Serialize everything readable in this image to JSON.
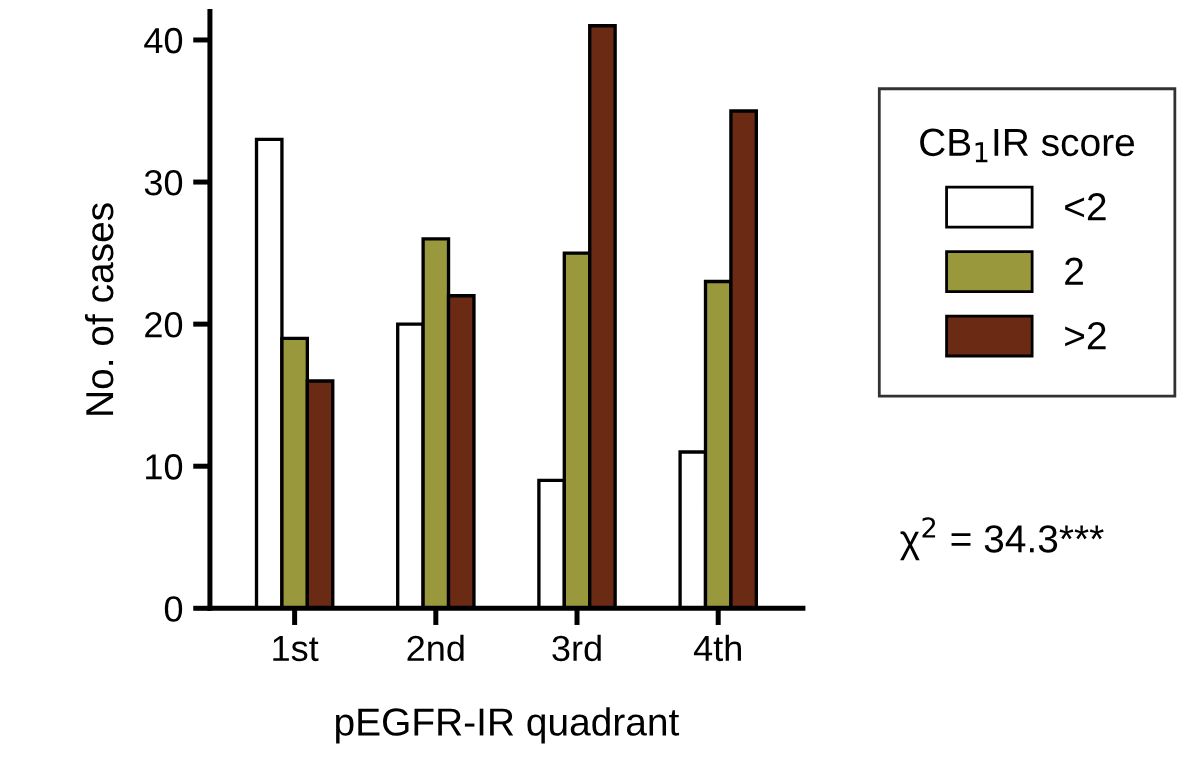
{
  "chart_data": {
    "type": "bar",
    "xlabel": "pEGFR-IR quadrant",
    "ylabel": "No. of cases",
    "categories": [
      "1st",
      "2nd",
      "3rd",
      "4th"
    ],
    "series": [
      {
        "name": "<2",
        "color": "#ffffff",
        "values": [
          33,
          20,
          9,
          11
        ]
      },
      {
        "name": "2",
        "color": "#9a983c",
        "values": [
          19,
          26,
          25,
          23
        ]
      },
      {
        "name": ">2",
        "color": "#6b2a14",
        "values": [
          16,
          22,
          41,
          35
        ]
      }
    ],
    "ylim": [
      0,
      42
    ],
    "yticks": [
      0,
      10,
      20,
      30,
      40
    ],
    "grid": false,
    "legend": "right",
    "legend_title": "CB$_{1}$IR score",
    "annotations": [
      "χ$^{2}$ = 34.3***"
    ]
  }
}
